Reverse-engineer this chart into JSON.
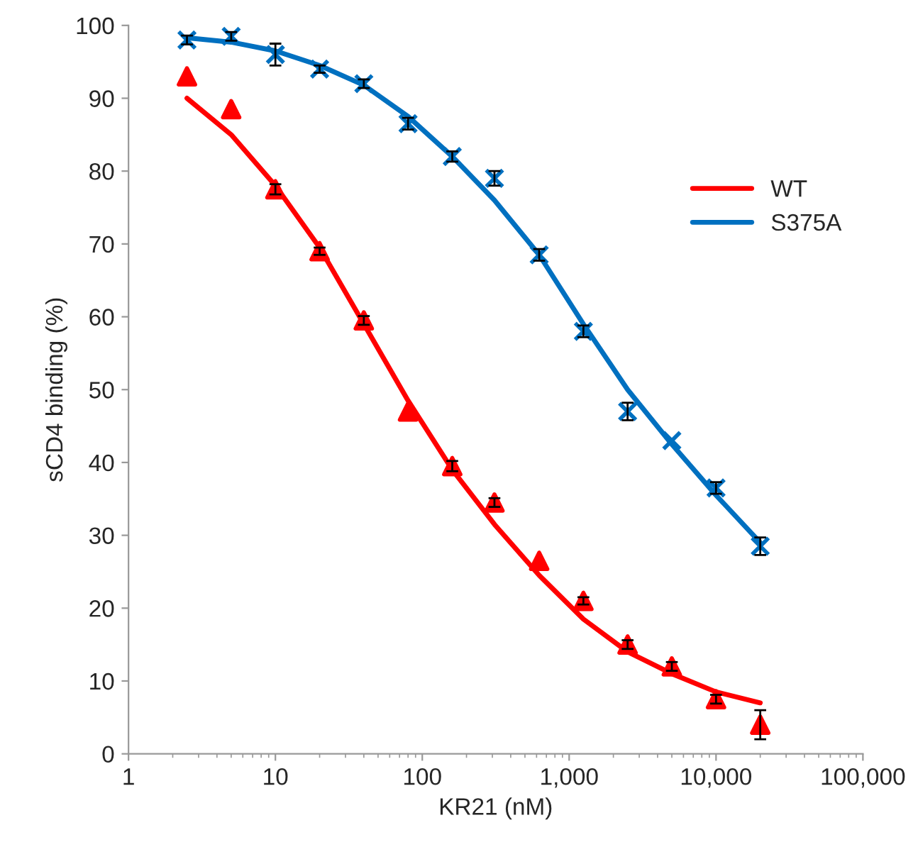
{
  "chart_data": {
    "type": "scatter",
    "xlabel": "KR21 (nM)",
    "ylabel": "sCD4 binding (%)",
    "log": "x",
    "grid": false,
    "legend": "right",
    "xlim": [
      1,
      100000
    ],
    "xticks": [
      1,
      10,
      100,
      {
        "value": 1000,
        "label": "1,000"
      },
      {
        "value": 10000,
        "label": "10,000"
      },
      {
        "value": 100000,
        "label": "100,000"
      }
    ],
    "ylim": [
      0,
      100
    ],
    "yticks": [
      0,
      10,
      20,
      30,
      40,
      50,
      60,
      70,
      80,
      90,
      100
    ],
    "series": [
      {
        "marker": "triangle",
        "color": "#ff0000",
        "x": [
          2.5,
          5,
          10,
          20,
          40,
          80,
          160,
          310,
          625,
          1250,
          2500,
          5000,
          10000,
          20000
        ],
        "values": [
          93,
          88.5,
          77.5,
          69,
          59.5,
          47,
          39.5,
          34.5,
          26.5,
          21,
          15,
          12,
          7.5,
          4
        ],
        "errors": [
          null,
          null,
          0.7,
          0.5,
          0.6,
          null,
          0.7,
          0.6,
          null,
          0.5,
          0.6,
          0.6,
          0.6,
          2
        ]
      },
      {
        "marker": "cross",
        "color": "#0070c0",
        "x": [
          2.5,
          5,
          10,
          20,
          40,
          80,
          160,
          310,
          625,
          1250,
          2500,
          5000,
          10000,
          20000
        ],
        "values": [
          98,
          98.5,
          96,
          94,
          92,
          86.5,
          82,
          79,
          68.5,
          58,
          47,
          43,
          36.5,
          28.5
        ],
        "errors": [
          0.6,
          0.6,
          1.5,
          0.5,
          0.6,
          0.8,
          0.7,
          1,
          0.8,
          0.8,
          1.2,
          null,
          0.8,
          1.2
        ]
      },
      {
        "type": "line",
        "name": "WT",
        "color": "#ff0000",
        "marker": "none",
        "x": [
          2.5,
          5,
          10,
          20,
          40,
          80,
          160,
          310,
          625,
          1250,
          2500,
          5000,
          10000,
          20000
        ],
        "values": [
          90,
          85,
          78,
          69.5,
          59,
          48.5,
          39,
          31.5,
          24.5,
          18.5,
          14,
          11,
          8.5,
          7
        ]
      },
      {
        "type": "line",
        "name": "S375A",
        "color": "#0070c0",
        "marker": "none",
        "x": [
          2.5,
          5,
          10,
          20,
          40,
          80,
          160,
          310,
          625,
          1250,
          2500,
          5000,
          10000,
          20000
        ],
        "values": [
          98.3,
          97.7,
          96.5,
          94.5,
          91.8,
          87.5,
          82,
          76,
          68.5,
          59,
          50,
          42.5,
          35.5,
          29
        ]
      }
    ]
  }
}
